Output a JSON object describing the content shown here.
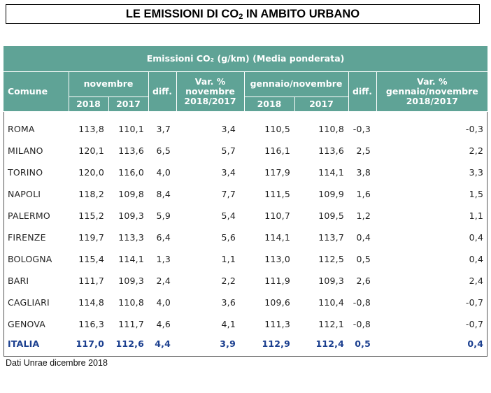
{
  "title": {
    "prefix": "LE EMISSIONI DI CO",
    "subscript": "2",
    "suffix": " IN AMBITO URBANO"
  },
  "table": {
    "banner": "Emissioni CO₂ (g/km)  (Media ponderata)",
    "headers": {
      "comune": "Comune",
      "novembre": "novembre",
      "diff": "diff.",
      "var_nov_line1": "Var. %",
      "var_nov_line2": "novembre",
      "var_nov_line3": "2018/2017",
      "gen_nov": "gennaio/novembre",
      "diff2": "diff.",
      "var_gen_line1": "Var. %",
      "var_gen_line2": "gennaio/novembre",
      "var_gen_line3": "2018/2017",
      "y2018_a": "2018",
      "y2017_a": "2017",
      "y2018_b": "2018",
      "y2017_b": "2017"
    },
    "rows": [
      {
        "comune": "ROMA",
        "nov_2018": "113,8",
        "nov_2017": "110,1",
        "diff": "3,7",
        "var_nov": "3,4",
        "gen_2018": "110,5",
        "gen_2017": "110,8",
        "diff2": "-0,3",
        "var_gen": "-0,3"
      },
      {
        "comune": "MILANO",
        "nov_2018": "120,1",
        "nov_2017": "113,6",
        "diff": "6,5",
        "var_nov": "5,7",
        "gen_2018": "116,1",
        "gen_2017": "113,6",
        "diff2": "2,5",
        "var_gen": "2,2"
      },
      {
        "comune": "TORINO",
        "nov_2018": "120,0",
        "nov_2017": "116,0",
        "diff": "4,0",
        "var_nov": "3,4",
        "gen_2018": "117,9",
        "gen_2017": "114,1",
        "diff2": "3,8",
        "var_gen": "3,3"
      },
      {
        "comune": "NAPOLI",
        "nov_2018": "118,2",
        "nov_2017": "109,8",
        "diff": "8,4",
        "var_nov": "7,7",
        "gen_2018": "111,5",
        "gen_2017": "109,9",
        "diff2": "1,6",
        "var_gen": "1,5"
      },
      {
        "comune": "PALERMO",
        "nov_2018": "115,2",
        "nov_2017": "109,3",
        "diff": "5,9",
        "var_nov": "5,4",
        "gen_2018": "110,7",
        "gen_2017": "109,5",
        "diff2": "1,2",
        "var_gen": "1,1"
      },
      {
        "comune": "FIRENZE",
        "nov_2018": "119,7",
        "nov_2017": "113,3",
        "diff": "6,4",
        "var_nov": "5,6",
        "gen_2018": "114,1",
        "gen_2017": "113,7",
        "diff2": "0,4",
        "var_gen": "0,4"
      },
      {
        "comune": "BOLOGNA",
        "nov_2018": "115,4",
        "nov_2017": "114,1",
        "diff": "1,3",
        "var_nov": "1,1",
        "gen_2018": "113,0",
        "gen_2017": "112,5",
        "diff2": "0,5",
        "var_gen": "0,4"
      },
      {
        "comune": "BARI",
        "nov_2018": "111,7",
        "nov_2017": "109,3",
        "diff": "2,4",
        "var_nov": "2,2",
        "gen_2018": "111,9",
        "gen_2017": "109,3",
        "diff2": "2,6",
        "var_gen": "2,4"
      },
      {
        "comune": "CAGLIARI",
        "nov_2018": "114,8",
        "nov_2017": "110,8",
        "diff": "4,0",
        "var_nov": "3,6",
        "gen_2018": "109,6",
        "gen_2017": "110,4",
        "diff2": "-0,8",
        "var_gen": "-0,7"
      },
      {
        "comune": "GENOVA",
        "nov_2018": "116,3",
        "nov_2017": "111,7",
        "diff": "4,6",
        "var_nov": "4,1",
        "gen_2018": "111,3",
        "gen_2017": "112,1",
        "diff2": "-0,8",
        "var_gen": "-0,7"
      }
    ],
    "total": {
      "comune": "ITALIA",
      "nov_2018": "117,0",
      "nov_2017": "112,6",
      "diff": "4,4",
      "var_nov": "3,9",
      "gen_2018": "112,9",
      "gen_2017": "112,4",
      "diff2": "0,5",
      "var_gen": "0,4"
    }
  },
  "footnote": "Dati Unrae dicembre 2018",
  "colors": {
    "header_bg": "#5fa396",
    "header_text": "#ffffff",
    "total_text": "#1b3f8f"
  }
}
